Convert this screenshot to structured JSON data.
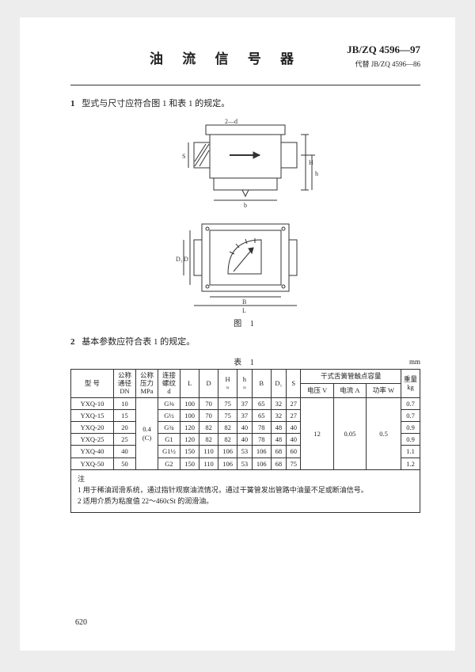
{
  "header": {
    "title": "油 流 信 号 器",
    "standard": "JB/ZQ 4596—97",
    "supersedes": "代替 JB/ZQ 4596—86"
  },
  "section1": {
    "num": "1",
    "text": "型式与尺寸应符合图 1 和表 1 的规定。"
  },
  "figure": {
    "label_2d": "2—d",
    "dim_b": "b",
    "dim_L": "L",
    "dim_D": "D",
    "dim_B": "B",
    "dim_S": "S",
    "dim_D1": "D₁",
    "dim_h": "h",
    "dim_H": "H",
    "arrow": "→",
    "caption": "图 1"
  },
  "section2": {
    "num": "2",
    "text": "基本参数应符合表 1 的规定。"
  },
  "table": {
    "caption": "表 1",
    "unit": "mm",
    "headers": {
      "model": "型  号",
      "dn": "公称通径 DN",
      "pressure": "公称压力 MPa",
      "thread": "连接螺纹 d",
      "L": "L",
      "D": "D",
      "H": "H",
      "H_sub": "≈",
      "h": "h",
      "h_sub": "≈",
      "B": "B",
      "D1": "D₁",
      "S": "S",
      "reed": "干式舌簧管触点容量",
      "volt": "电压 V",
      "amp": "电流 A",
      "watt": "功率 W",
      "weight": "重量 kg"
    },
    "pressure_shared": "0.4 (C)",
    "volt_shared": "12",
    "amp_shared": "0.05",
    "watt_shared": "0.5",
    "rows": [
      {
        "model": "YXQ-10",
        "dn": "10",
        "thread": "G⅜",
        "L": "100",
        "D": "70",
        "H": "75",
        "h": "37",
        "B": "65",
        "D1": "32",
        "S": "27",
        "wt": "0.7"
      },
      {
        "model": "YXQ-15",
        "dn": "15",
        "thread": "G½",
        "L": "100",
        "D": "70",
        "H": "75",
        "h": "37",
        "B": "65",
        "D1": "32",
        "S": "27",
        "wt": "0.7"
      },
      {
        "model": "YXQ-20",
        "dn": "20",
        "thread": "G¾",
        "L": "120",
        "D": "82",
        "H": "82",
        "h": "40",
        "B": "78",
        "D1": "48",
        "S": "40",
        "wt": "0.9"
      },
      {
        "model": "YXQ-25",
        "dn": "25",
        "thread": "G1",
        "L": "120",
        "D": "82",
        "H": "82",
        "h": "40",
        "B": "78",
        "D1": "48",
        "S": "40",
        "wt": "0.9"
      },
      {
        "model": "YXQ-40",
        "dn": "40",
        "thread": "G1½",
        "L": "150",
        "D": "110",
        "H": "106",
        "h": "53",
        "B": "106",
        "D1": "68",
        "S": "60",
        "wt": "1.1"
      },
      {
        "model": "YXQ-50",
        "dn": "50",
        "thread": "G2",
        "L": "150",
        "D": "110",
        "H": "106",
        "h": "53",
        "B": "106",
        "D1": "68",
        "S": "75",
        "wt": "1.2"
      }
    ]
  },
  "notes": {
    "heading": "注",
    "n1": "1  用于稀油润滑系统，通过指针观察油流情况，通过干簧管发出管路中油量不足或断油信号。",
    "n2": "2  适用介质为粘度值 22～460cSt 的润滑油。"
  },
  "pageno": "620",
  "svg": {
    "stroke": "#333",
    "fill_hatch": "#333"
  }
}
